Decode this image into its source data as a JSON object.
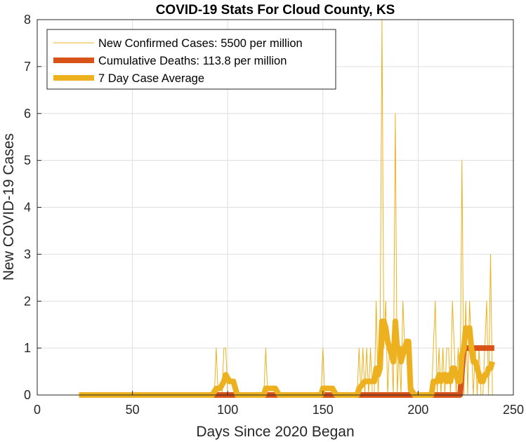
{
  "chart_data": {
    "type": "line",
    "title": "COVID-19 Stats For Cloud County, KS",
    "xlabel": "Days Since 2020 Began",
    "ylabel": "New COVID-19 Cases",
    "xlim": [
      0,
      250
    ],
    "ylim": [
      0,
      8
    ],
    "xticks": [
      0,
      50,
      100,
      150,
      200,
      250
    ],
    "yticks": [
      0,
      1,
      2,
      3,
      4,
      5,
      6,
      7,
      8
    ],
    "grid": true,
    "legend_position": "top-left",
    "colors": {
      "new_cases": "#EDB120",
      "deaths": "#D95319",
      "average": "#EDB120"
    },
    "series": [
      {
        "name": "New Confirmed Cases: 5500 per million",
        "x": [
          22,
          93,
          94,
          95,
          97,
          98,
          99,
          100,
          119,
          120,
          121,
          149,
          150,
          151,
          168,
          169,
          170,
          171,
          172,
          173,
          174,
          175,
          176,
          177,
          178,
          179,
          180,
          181,
          182,
          183,
          184,
          185,
          186,
          187,
          188,
          189,
          190,
          191,
          192,
          193,
          194,
          195,
          196,
          197,
          198,
          207,
          208,
          209,
          210,
          211,
          212,
          213,
          214,
          215,
          216,
          217,
          218,
          219,
          220,
          221,
          222,
          223,
          224,
          225,
          226,
          227,
          228,
          229,
          230,
          231,
          232,
          233,
          234,
          235,
          236,
          237,
          238,
          239
        ],
        "values": [
          0,
          0,
          1,
          0,
          0,
          1,
          1,
          0,
          0,
          1,
          0,
          0,
          1,
          0,
          0,
          1,
          0,
          1,
          0,
          1,
          0,
          1,
          0,
          0,
          2,
          0,
          1,
          8,
          1,
          2,
          0,
          1,
          1,
          0,
          6,
          0,
          1,
          0,
          2,
          1,
          1,
          0,
          0,
          0,
          0,
          0,
          1,
          2,
          0,
          1,
          0,
          1,
          0,
          1,
          1,
          0,
          2,
          1,
          0,
          1,
          0,
          5,
          0,
          2,
          0,
          2,
          1,
          0,
          1,
          0,
          1,
          0,
          0,
          1,
          2,
          0,
          3,
          0
        ]
      },
      {
        "name": "Cumulative Deaths: 113.8 per million",
        "x": [
          22,
          222,
          223,
          224,
          240
        ],
        "values": [
          0,
          0,
          0.5,
          1,
          1
        ]
      },
      {
        "name": "7 Day Case Average",
        "x": [
          22,
          92,
          94,
          96,
          98,
          99,
          101,
          103,
          105,
          119,
          120,
          125,
          127,
          149,
          150,
          155,
          157,
          168,
          169,
          172,
          175,
          177,
          178,
          179,
          180,
          181,
          182,
          183,
          184,
          185,
          186,
          187,
          188,
          189,
          190,
          191,
          192,
          193,
          194,
          195,
          196,
          198,
          207,
          208,
          210,
          211,
          212,
          213,
          214,
          215,
          216,
          217,
          218,
          219,
          220,
          221,
          222,
          223,
          224,
          225,
          226,
          227,
          228,
          229,
          230,
          231,
          232,
          233,
          234,
          235,
          236,
          237,
          238,
          239
        ],
        "values": [
          0,
          0,
          0.14,
          0.14,
          0.29,
          0.43,
          0.29,
          0.29,
          0,
          0,
          0.14,
          0.14,
          0,
          0,
          0.14,
          0.14,
          0,
          0,
          0.14,
          0.29,
          0.29,
          0.29,
          0.57,
          0.43,
          0.57,
          1.57,
          1.57,
          1.43,
          1.14,
          1.0,
          0.86,
          0.71,
          1.57,
          1.0,
          1.0,
          0.71,
          0.86,
          1.0,
          1.14,
          1.14,
          0.14,
          0,
          0,
          0.29,
          0.29,
          0.43,
          0.29,
          0.43,
          0.43,
          0.29,
          0.43,
          0.29,
          0.57,
          0.57,
          0.43,
          0.29,
          0.29,
          0.86,
          1.0,
          1.43,
          1.29,
          1.43,
          1.0,
          0.71,
          0.71,
          0.57,
          0.43,
          0.29,
          0.29,
          0.43,
          0.43,
          0.57,
          0.57,
          0.71
        ]
      }
    ]
  }
}
